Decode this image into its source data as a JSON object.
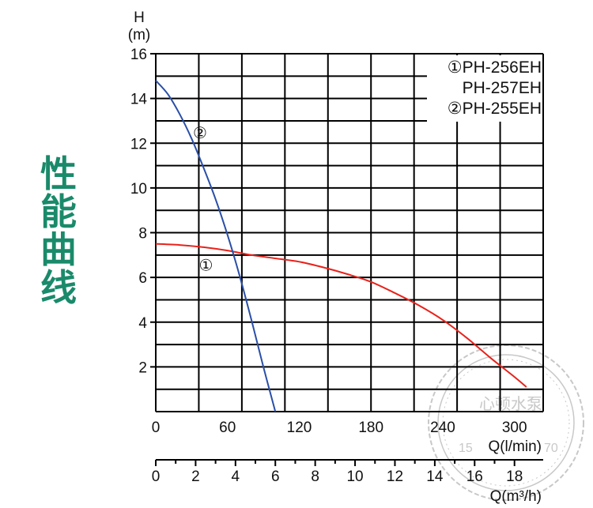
{
  "side_title": [
    "性",
    "能",
    "曲",
    "线"
  ],
  "colors": {
    "title": "#1a8a6a",
    "curve_1": "#e8221b",
    "curve_2": "#2a4fa8",
    "grid": "#000000",
    "stamp": "#c8c8c8"
  },
  "chart_data": {
    "type": "line",
    "ylabel_top": "H",
    "ylabel_unit": "(m)",
    "y_ticks": [
      "16",
      "14",
      "12",
      "10",
      "8",
      "6",
      "4",
      "2"
    ],
    "y_tick_values": [
      16,
      14,
      12,
      10,
      8,
      6,
      4,
      2
    ],
    "ylim": [
      0,
      16
    ],
    "x_ticks": [
      "0",
      "60",
      "120",
      "180",
      "240",
      "300"
    ],
    "x_tick_values": [
      0,
      60,
      120,
      180,
      240,
      300
    ],
    "xlabel": "Q(l/min)",
    "xlim": [
      0,
      324
    ],
    "x2_ticks": [
      "0",
      "2",
      "4",
      "6",
      "8",
      "10",
      "12",
      "14",
      "16",
      "18"
    ],
    "x2_tick_values": [
      0,
      2,
      4,
      6,
      8,
      10,
      12,
      14,
      16,
      18
    ],
    "x2label": "Q(m³/h)",
    "grid": true,
    "legend": [
      "①PH-256EH",
      "PH-257EH",
      "②PH-255EH"
    ],
    "legend_position": "top-right",
    "series": [
      {
        "name": "①",
        "label_at": [
          42,
          6.5
        ],
        "color": "#e8221b",
        "x": [
          0,
          20,
          40,
          60,
          80,
          100,
          120,
          140,
          160,
          180,
          200,
          220,
          240,
          260,
          280,
          300,
          310
        ],
        "y": [
          7.5,
          7.45,
          7.35,
          7.2,
          7.0,
          6.85,
          6.7,
          6.45,
          6.15,
          5.8,
          5.3,
          4.75,
          4.1,
          3.3,
          2.4,
          1.55,
          1.1
        ]
      },
      {
        "name": "②",
        "label_at": [
          37,
          12.4
        ],
        "color": "#2a4fa8",
        "x": [
          0,
          10,
          20,
          30,
          40,
          50,
          60,
          70,
          80,
          90,
          100
        ],
        "y": [
          14.8,
          14.2,
          13.3,
          12.2,
          10.9,
          9.5,
          7.9,
          6.1,
          4.1,
          2.0,
          0
        ]
      }
    ]
  },
  "stamp_text": [
    "心顿水泵",
    "15",
    "70"
  ]
}
